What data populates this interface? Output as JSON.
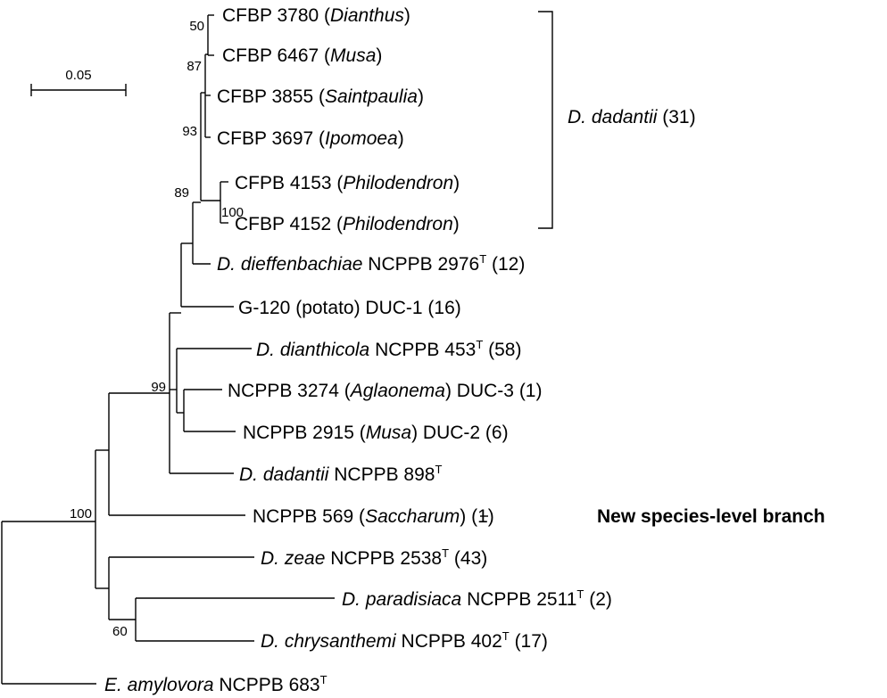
{
  "scale_bar": {
    "label": "0.05"
  },
  "taxa": [
    {
      "parts": [
        {
          "t": "CFBP 3780 ("
        },
        {
          "t": "Dianthus",
          "i": true
        },
        {
          "t": ")"
        }
      ]
    },
    {
      "parts": [
        {
          "t": "CFBP 6467 ("
        },
        {
          "t": "Musa",
          "i": true
        },
        {
          "t": ")"
        }
      ]
    },
    {
      "parts": [
        {
          "t": "CFBP 3855 ("
        },
        {
          "t": "Saintpaulia",
          "i": true
        },
        {
          "t": ")"
        }
      ]
    },
    {
      "parts": [
        {
          "t": "CFBP 3697 ("
        },
        {
          "t": "Ipomoea",
          "i": true
        },
        {
          "t": ")"
        }
      ]
    },
    {
      "parts": [
        {
          "t": "CFPB 4153 ("
        },
        {
          "t": "Philodendron",
          "i": true
        },
        {
          "t": ")"
        }
      ]
    },
    {
      "parts": [
        {
          "t": "CFBP 4152 ("
        },
        {
          "t": "Philodendron",
          "i": true
        },
        {
          "t": ")"
        }
      ]
    },
    {
      "parts": [
        {
          "t": "D. dieffenbachiae",
          "i": true
        },
        {
          "t": " NCPPB 2976"
        },
        {
          "t": "T",
          "sup": true
        },
        {
          "t": " (12)"
        }
      ]
    },
    {
      "parts": [
        {
          "t": "G-120 (potato) DUC-1 (16)"
        }
      ]
    },
    {
      "parts": [
        {
          "t": "D. dianthicola",
          "i": true
        },
        {
          "t": " NCPPB 453"
        },
        {
          "t": "T",
          "sup": true
        },
        {
          "t": " (58)"
        }
      ]
    },
    {
      "parts": [
        {
          "t": "NCPPB 3274 ("
        },
        {
          "t": "Aglaonema",
          "i": true
        },
        {
          "t": ") DUC-3 (1)"
        }
      ]
    },
    {
      "parts": [
        {
          "t": "NCPPB 2915 ("
        },
        {
          "t": "Musa",
          "i": true
        },
        {
          "t": ") DUC-2 (6)"
        }
      ]
    },
    {
      "parts": [
        {
          "t": "D. dadantii",
          "i": true
        },
        {
          "t": " NCPPB 898"
        },
        {
          "t": "T",
          "sup": true
        }
      ]
    },
    {
      "parts": [
        {
          "t": "NCPPB 569 ("
        },
        {
          "t": "Saccharum",
          "i": true
        },
        {
          "t": ") (1)"
        }
      ]
    },
    {
      "parts": [
        {
          "t": "D. zeae",
          "i": true
        },
        {
          "t": " NCPPB 2538"
        },
        {
          "t": "T",
          "sup": true
        },
        {
          "t": " (43)"
        }
      ]
    },
    {
      "parts": [
        {
          "t": "D. paradisiaca",
          "i": true
        },
        {
          "t": " NCPPB 2511"
        },
        {
          "t": "T",
          "sup": true
        },
        {
          "t": " (2)"
        }
      ]
    },
    {
      "parts": [
        {
          "t": "D. chrysanthemi",
          "i": true
        },
        {
          "t": " NCPPB 402"
        },
        {
          "t": "T",
          "sup": true
        },
        {
          "t": " (17)"
        }
      ]
    },
    {
      "parts": [
        {
          "t": "E. amylovora",
          "i": true
        },
        {
          "t": " NCPPB 683"
        },
        {
          "t": "T",
          "sup": true
        }
      ]
    }
  ],
  "bootstrap": [
    "50",
    "87",
    "93",
    "100",
    "89",
    "99",
    "100",
    "60"
  ],
  "clade": {
    "name": "D. dadantii",
    "count": " (31)"
  },
  "callout": "New species-level branch"
}
